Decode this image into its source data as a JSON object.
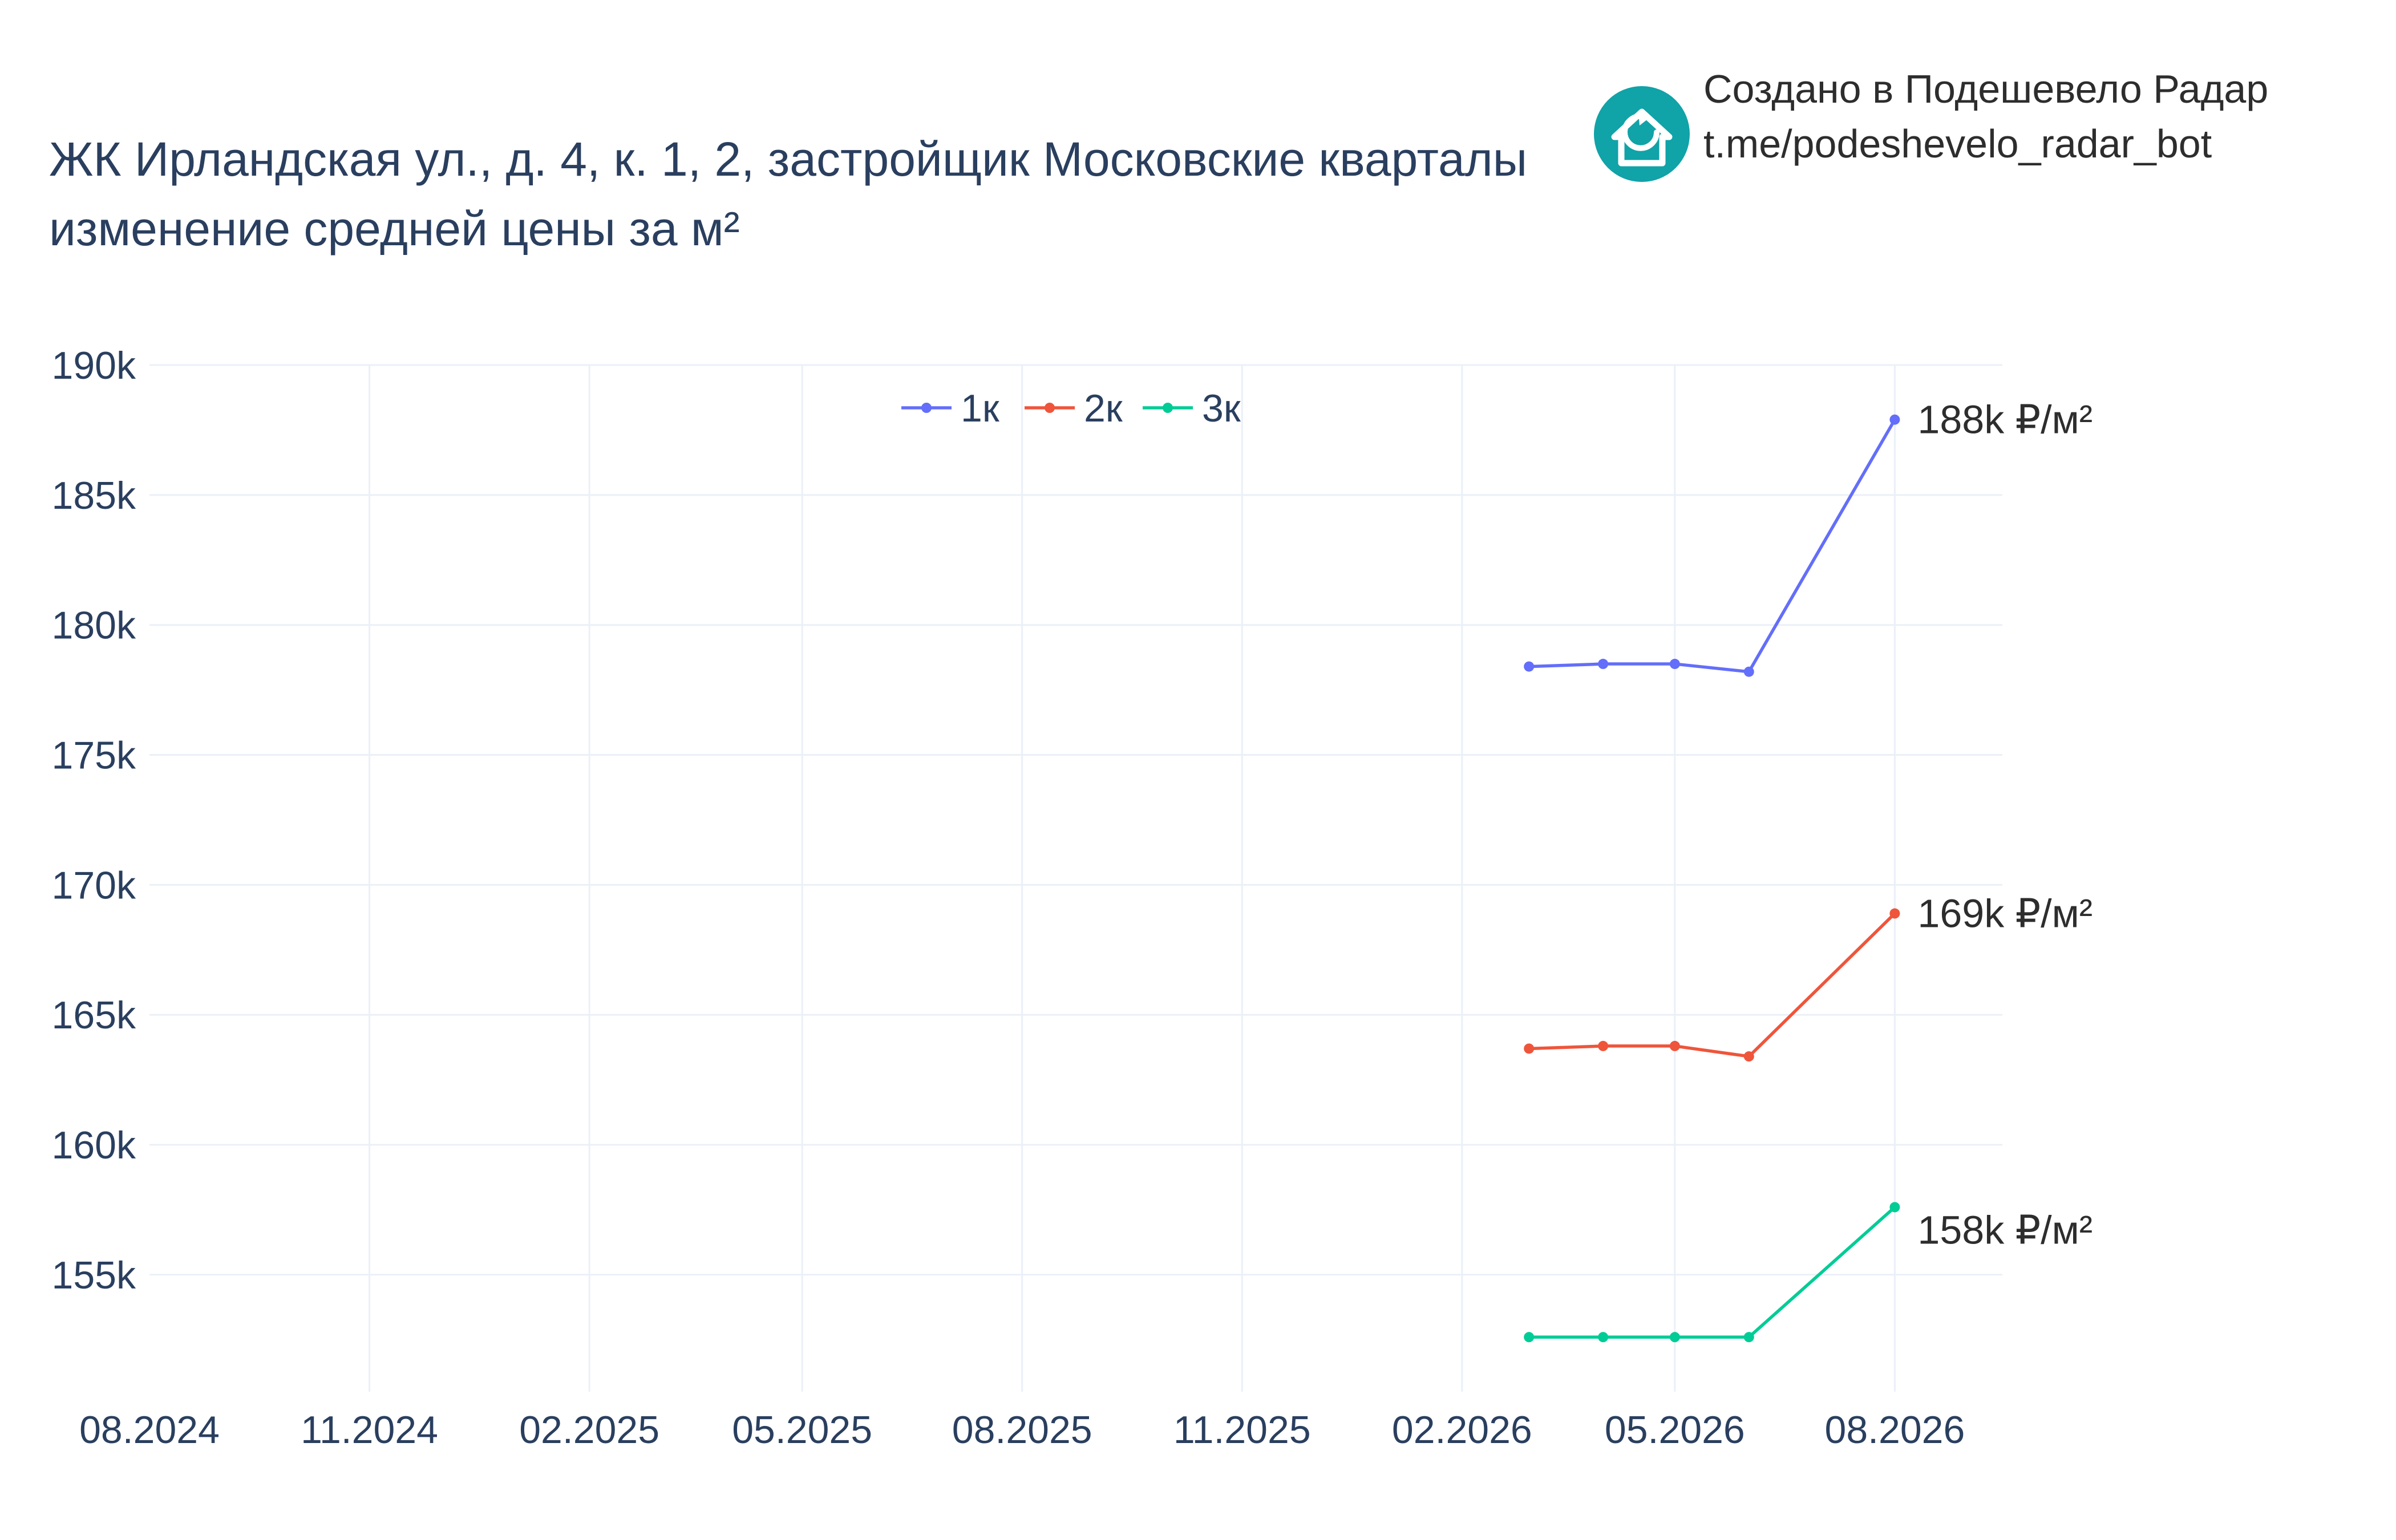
{
  "branding": {
    "line1": "Создано в Подешевело Радар",
    "line2": "t.me/podeshevelo_radar_bot",
    "logo_color": "#10a3a8",
    "logo_icon": "house-arrow-icon"
  },
  "chart_data": {
    "type": "line",
    "title": "ЖК Ирландская ул., д. 4, к. 1, 2, застройщик Московские кварталы",
    "subtitle": "изменение средней цены за м²",
    "xlabel": "",
    "ylabel": "",
    "x_axis": {
      "type": "date",
      "range": [
        "2024-08-01",
        "2026-09-15"
      ],
      "ticks": [
        "2024-08-01",
        "2024-11-01",
        "2025-02-01",
        "2025-05-01",
        "2025-08-01",
        "2025-11-01",
        "2026-02-01",
        "2026-05-01",
        "2026-08-01"
      ],
      "tick_labels": [
        "08.2024",
        "11.2024",
        "02.2025",
        "05.2025",
        "08.2025",
        "11.2025",
        "02.2026",
        "05.2026",
        "08.2026"
      ]
    },
    "y_axis": {
      "range": [
        150500,
        190000
      ],
      "ticks": [
        155000,
        160000,
        165000,
        170000,
        175000,
        180000,
        185000,
        190000
      ],
      "tick_labels": [
        "155k",
        "160k",
        "165k",
        "170k",
        "175k",
        "180k",
        "185k",
        "190k"
      ]
    },
    "grid": true,
    "legend": {
      "position": "top-center",
      "orientation": "horizontal"
    },
    "x": [
      "2026-03-01",
      "2026-04-01",
      "2026-05-01",
      "2026-06-01",
      "2026-08-01"
    ],
    "series": [
      {
        "name": "1к",
        "color": "#636efa",
        "values": [
          178400,
          178500,
          178500,
          178200,
          187900
        ],
        "end_label": "188k ₽/м²"
      },
      {
        "name": "2к",
        "color": "#ef553b",
        "values": [
          163700,
          163800,
          163800,
          163400,
          168900
        ],
        "end_label": "169k ₽/м²"
      },
      {
        "name": "3к",
        "color": "#00cc96",
        "values": [
          152600,
          152600,
          152600,
          152600,
          157600
        ],
        "end_label": "158k ₽/м²"
      }
    ]
  }
}
